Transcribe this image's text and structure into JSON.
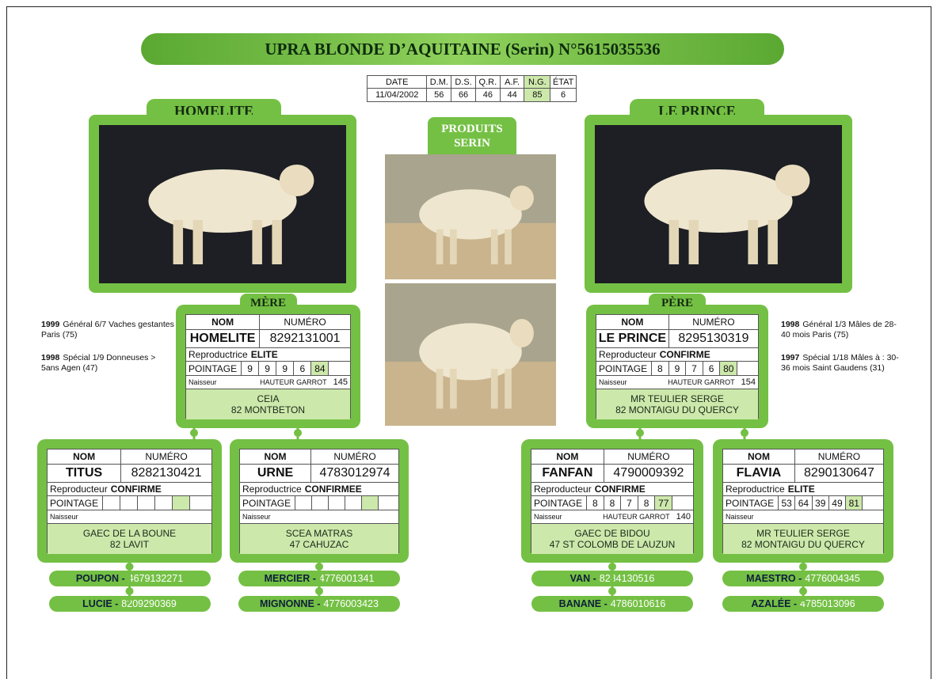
{
  "header": {
    "title": "UPRA BLONDE D’AQUITAINE (Serin) N°5615035536"
  },
  "stats": {
    "headers": [
      "DATE",
      "D.M.",
      "D.S.",
      "Q.R.",
      "A.F.",
      "N.G.",
      "ÉTAT"
    ],
    "values": [
      "11/04/2002",
      56,
      66,
      46,
      44,
      85,
      6
    ]
  },
  "labels": {
    "nom": "NOM",
    "numero": "NUMÉRO",
    "pointage": "POINTAGE",
    "naisseur": "Naisseur",
    "garrot": "HAUTEUR GARROT"
  },
  "photos": {
    "dam": "HOMELITE",
    "sire": "LE PRINCE",
    "products": [
      "PRODUITS",
      "SERIN"
    ]
  },
  "notes": {
    "left": [
      {
        "year": "1999",
        "text": "Général 6/7 Vaches gestantes Paris (75)"
      },
      {
        "year": "1998",
        "text": "Spécial 1/9 Donneuses > 5ans Agen (47)"
      }
    ],
    "right": [
      {
        "year": "1998",
        "text": "Général 1/3 Mâles de 28-40 mois Paris (75)"
      },
      {
        "year": "1997",
        "text": "Spécial 1/18 Mâles à : 30-36 mois Saint Gaudens (31)"
      }
    ]
  },
  "cards": [
    {
      "role": "MÈRE",
      "name": "HOMELITE",
      "number": "8292131001",
      "qual_prefix": "Reproductrice",
      "qual": "ELITE",
      "scores": [
        9,
        9,
        9,
        6,
        84
      ],
      "garrot": 145,
      "breeder": [
        "CEIA",
        "82 MONTBETON"
      ]
    },
    {
      "role": "PÈRE",
      "name": "LE PRINCE",
      "number": "8295130319",
      "qual_prefix": "Reproducteur",
      "qual": "CONFIRME",
      "scores": [
        8,
        9,
        7,
        6,
        80
      ],
      "garrot": 154,
      "breeder": [
        "MR TEULIER SERGE",
        "82 MONTAIGU DU QUERCY"
      ]
    },
    {
      "name": "TITUS",
      "number": "8282130421",
      "qual_prefix": "Reproducteur",
      "qual": "CONFIRME",
      "breeder": [
        "GAEC DE LA BOUNE",
        "82 LAVIT"
      ],
      "ancestors": [
        {
          "label": "POUPON -",
          "number": "4679132271"
        },
        {
          "label": "LUCIE -",
          "number": "8209290369"
        }
      ]
    },
    {
      "name": "URNE",
      "number": "4783012974",
      "qual_prefix": "Reproductrice",
      "qual": "CONFIRMEE",
      "breeder": [
        "SCEA MATRAS",
        "47 CAHUZAC"
      ],
      "ancestors": [
        {
          "label": "MERCIER -",
          "number": "4776001341"
        },
        {
          "label": "MIGNONNE -",
          "number": "4776003423"
        }
      ]
    },
    {
      "name": "FANFAN",
      "number": "4790009392",
      "qual_prefix": "Reproducteur",
      "qual": "CONFIRME",
      "scores": [
        8,
        8,
        7,
        8,
        77
      ],
      "garrot": 140,
      "breeder": [
        "GAEC DE BIDOU",
        "47 ST COLOMB DE LAUZUN"
      ],
      "ancestors": [
        {
          "label": "VAN -",
          "number": "8284130516"
        },
        {
          "label": "BANANE -",
          "number": "4786010616"
        }
      ]
    },
    {
      "name": "FLAVIA",
      "number": "8290130647",
      "qual_prefix": "Reproductrice",
      "qual": "ELITE",
      "scores": [
        53,
        64,
        39,
        49,
        81
      ],
      "breeder": [
        "MR TEULIER SERGE",
        "82 MONTAIGU DU QUERCY"
      ],
      "ancestors": [
        {
          "label": "MAESTRO -",
          "number": "4776004345"
        },
        {
          "label": "AZALÉE -",
          "number": "4785013096"
        }
      ]
    }
  ]
}
